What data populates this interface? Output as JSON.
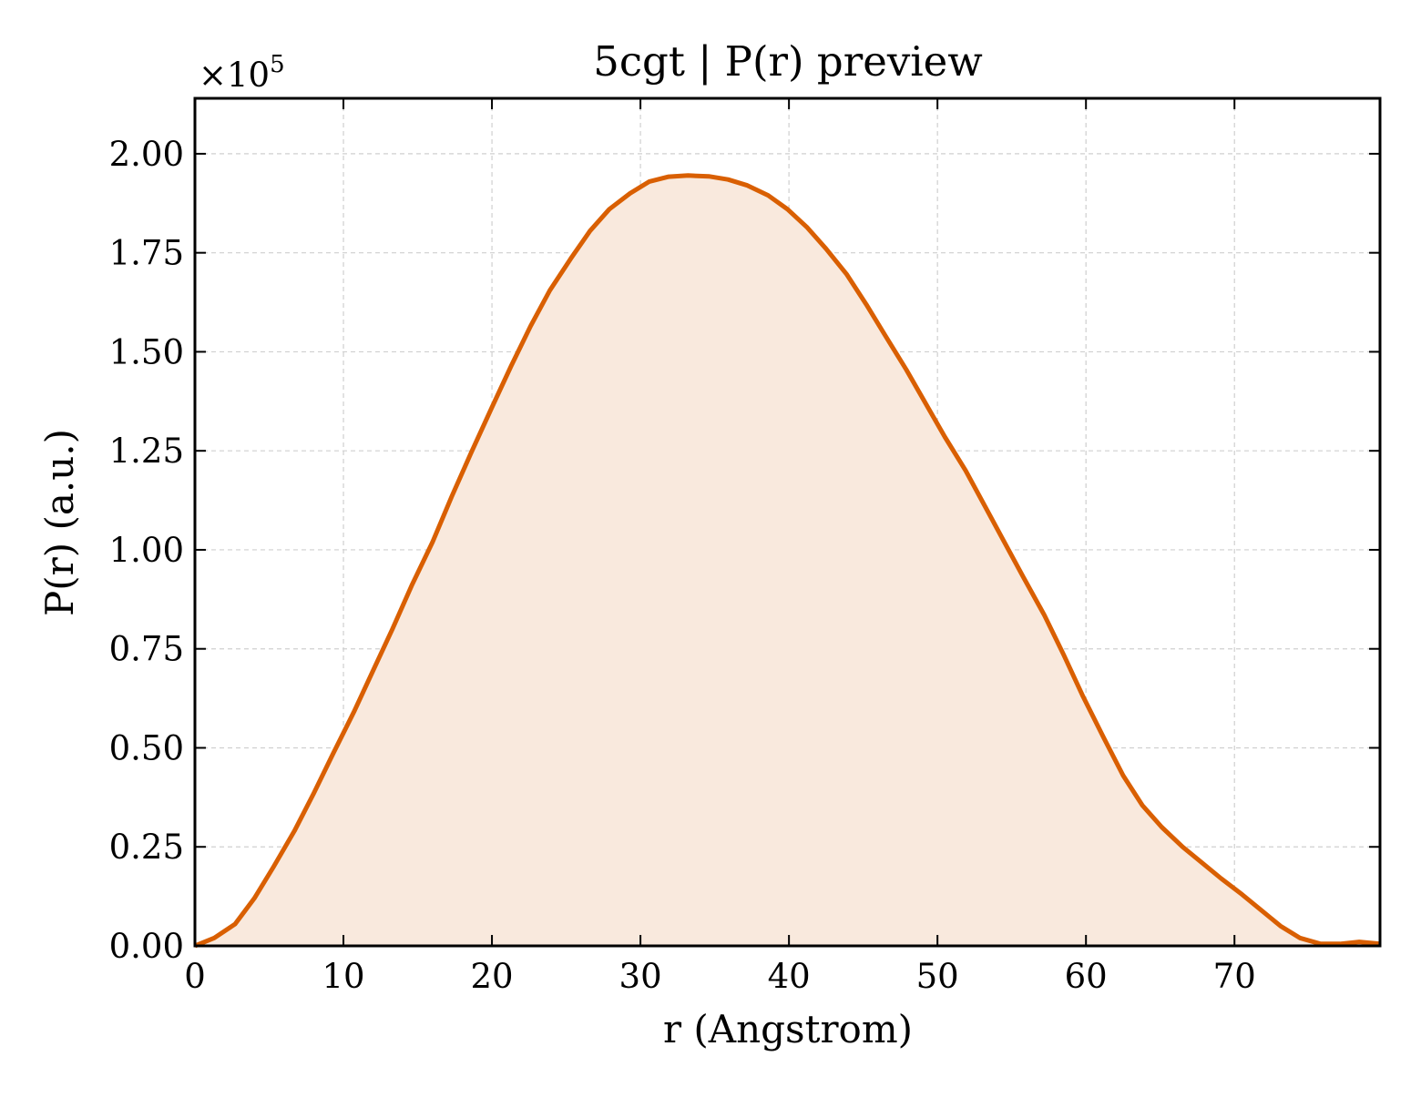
{
  "chart_data": {
    "type": "area",
    "title": "5cgt | P(r) preview",
    "xlabel": "r (Angstrom)",
    "ylabel": "P(r) (a.u.)",
    "y_scale_label": "×10",
    "y_scale_exponent": "5",
    "xlim": [
      0,
      79.8
    ],
    "ylim": [
      0,
      2.14
    ],
    "x_ticks": [
      0,
      10,
      20,
      30,
      40,
      50,
      60,
      70
    ],
    "x_tick_labels": [
      "0",
      "10",
      "20",
      "30",
      "40",
      "50",
      "60",
      "70"
    ],
    "y_ticks": [
      0,
      0.25,
      0.5,
      0.75,
      1.0,
      1.25,
      1.5,
      1.75,
      2.0
    ],
    "y_tick_labels": [
      "0.00",
      "0.25",
      "0.50",
      "0.75",
      "1.00",
      "1.25",
      "1.50",
      "1.75",
      "2.00"
    ],
    "grid": true,
    "legend": "none",
    "colors": {
      "line": "#d95f02",
      "fill": "#f9e9dd",
      "axes": "#000000",
      "grid": "#cfcfcf"
    },
    "series": [
      {
        "x": [
          0,
          1.3,
          2.7,
          4.0,
          5.3,
          6.7,
          8.0,
          9.3,
          10.7,
          12.0,
          13.3,
          14.6,
          16.0,
          17.3,
          18.6,
          20.0,
          21.3,
          22.6,
          23.9,
          25.3,
          26.6,
          27.9,
          29.3,
          30.6,
          31.9,
          33.2,
          34.6,
          35.9,
          37.2,
          38.6,
          39.9,
          41.2,
          42.5,
          43.9,
          45.2,
          46.5,
          47.9,
          49.2,
          50.5,
          51.9,
          53.2,
          54.5,
          55.8,
          57.2,
          58.5,
          59.8,
          61.2,
          62.5,
          63.8,
          65.1,
          66.5,
          67.8,
          69.1,
          70.5,
          71.8,
          73.1,
          74.4,
          75.8,
          77.1,
          78.4,
          79.8
        ],
        "y": [
          0.0,
          0.02,
          0.055,
          0.12,
          0.2,
          0.29,
          0.385,
          0.485,
          0.59,
          0.695,
          0.8,
          0.91,
          1.02,
          1.135,
          1.245,
          1.36,
          1.465,
          1.565,
          1.655,
          1.735,
          1.805,
          1.86,
          1.9,
          1.93,
          1.942,
          1.945,
          1.943,
          1.935,
          1.92,
          1.895,
          1.86,
          1.815,
          1.76,
          1.695,
          1.62,
          1.54,
          1.455,
          1.37,
          1.285,
          1.2,
          1.11,
          1.02,
          0.93,
          0.835,
          0.735,
          0.63,
          0.525,
          0.43,
          0.355,
          0.3,
          0.25,
          0.21,
          0.17,
          0.13,
          0.09,
          0.05,
          0.02,
          0.005,
          0.005,
          0.01,
          0.005
        ]
      }
    ]
  }
}
